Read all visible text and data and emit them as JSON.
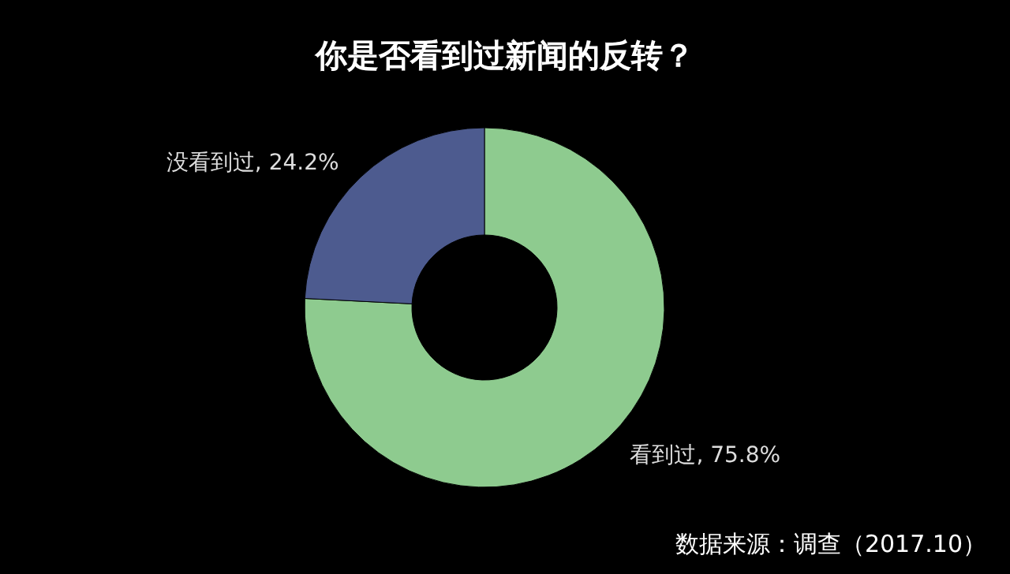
{
  "chart_data": {
    "type": "donut",
    "title": "你是否看到过新闻的反转？",
    "categories": [
      "看到过",
      "没看到过"
    ],
    "values": [
      75.8,
      24.2
    ],
    "value_labels": [
      "75.8%",
      "24.2%"
    ],
    "colors": [
      "#8ecb8f",
      "#4d5b8f"
    ],
    "annotations": [
      "数据来源：调查（2017.10）"
    ]
  }
}
